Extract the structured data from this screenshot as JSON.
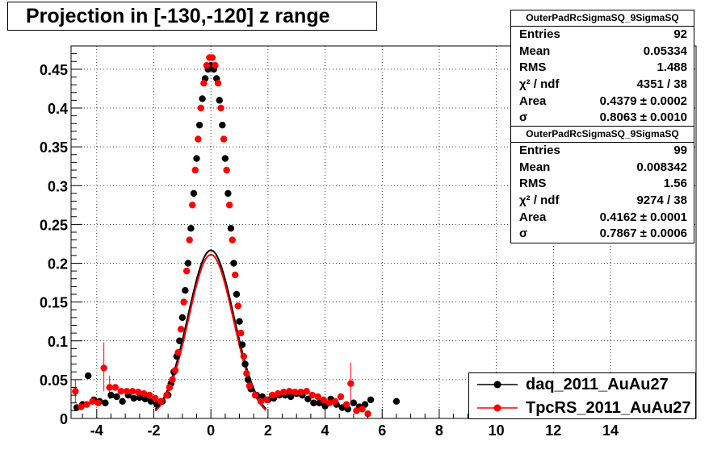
{
  "title": "Projection in [-130,-120] z range",
  "stats_boxes": [
    {
      "name": "OuterPadRcSigmaSQ_9SigmaSQ",
      "rows": [
        {
          "label": "Entries",
          "value": "92"
        },
        {
          "label": "Mean",
          "value": "0.05334"
        },
        {
          "label": "RMS",
          "value": "1.488"
        },
        {
          "label": "χ² / ndf",
          "value": "4351 / 38"
        },
        {
          "label": "Area",
          "value": "0.4379 ± 0.0002"
        },
        {
          "label": "σ",
          "value": "0.8063 ± 0.0010"
        }
      ]
    },
    {
      "name": "OuterPadRcSigmaSQ_9SigmaSQ",
      "rows": [
        {
          "label": "Entries",
          "value": "99"
        },
        {
          "label": "Mean",
          "value": "0.008342"
        },
        {
          "label": "RMS",
          "value": "1.56"
        },
        {
          "label": "χ² / ndf",
          "value": "9274 / 38"
        },
        {
          "label": "Area",
          "value": "0.4162 ± 0.0001"
        },
        {
          "label": "σ",
          "value": "0.7867 ± 0.0006"
        }
      ]
    }
  ],
  "legend": [
    {
      "label": "daq_2011_AuAu27",
      "color": "#000000"
    },
    {
      "label": "TpcRS_2011_AuAu27",
      "color": "#ff0000"
    }
  ],
  "chart_data": {
    "type": "scatter",
    "title": "Projection in [-130,-120] z range",
    "xlim": [
      -4.9,
      17
    ],
    "ylim": [
      0,
      0.48
    ],
    "grid": true,
    "legend_position": "bottom-right",
    "x_ticks": [
      -4,
      -2,
      0,
      2,
      4,
      6,
      8,
      10,
      12,
      14
    ],
    "y_ticks": [
      0,
      0.05,
      0.1,
      0.15,
      0.2,
      0.25,
      0.3,
      0.35,
      0.4,
      0.45
    ],
    "y_tick_labels": [
      "0",
      "0.05",
      "0.1",
      "0.15",
      "0.2",
      "0.25",
      "0.3",
      "0.35",
      "0.4",
      "0.45"
    ],
    "series": [
      {
        "name": "daq_2011_AuAu27",
        "color": "#000000",
        "points": [
          [
            -4.7,
            0.014
          ],
          [
            -4.5,
            0.018
          ],
          [
            -4.3,
            0.055
          ],
          [
            -4.1,
            0.024
          ],
          [
            -3.9,
            0.022
          ],
          [
            -3.7,
            0.02
          ],
          [
            -3.5,
            0.03
          ],
          [
            -3.3,
            0.028
          ],
          [
            -3.1,
            0.022
          ],
          [
            -2.9,
            0.03
          ],
          [
            -2.7,
            0.026
          ],
          [
            -2.5,
            0.027
          ],
          [
            -2.3,
            0.025
          ],
          [
            -2.1,
            0.022
          ],
          [
            -1.9,
            0.018
          ],
          [
            -1.7,
            0.022
          ],
          [
            -1.5,
            0.03
          ],
          [
            -1.4,
            0.045
          ],
          [
            -1.3,
            0.06
          ],
          [
            -1.2,
            0.08
          ],
          [
            -1.1,
            0.1
          ],
          [
            -1.0,
            0.13
          ],
          [
            -0.9,
            0.165
          ],
          [
            -0.8,
            0.2
          ],
          [
            -0.7,
            0.245
          ],
          [
            -0.6,
            0.29
          ],
          [
            -0.5,
            0.335
          ],
          [
            -0.4,
            0.378
          ],
          [
            -0.3,
            0.412
          ],
          [
            -0.2,
            0.438
          ],
          [
            -0.1,
            0.45
          ],
          [
            0.0,
            0.455
          ],
          [
            0.1,
            0.45
          ],
          [
            0.2,
            0.438
          ],
          [
            0.3,
            0.41
          ],
          [
            0.4,
            0.378
          ],
          [
            0.5,
            0.335
          ],
          [
            0.6,
            0.29
          ],
          [
            0.7,
            0.245
          ],
          [
            0.8,
            0.2
          ],
          [
            0.9,
            0.16
          ],
          [
            1.0,
            0.125
          ],
          [
            1.1,
            0.095
          ],
          [
            1.2,
            0.07
          ],
          [
            1.3,
            0.05
          ],
          [
            1.4,
            0.038
          ],
          [
            1.6,
            0.03
          ],
          [
            1.8,
            0.028
          ],
          [
            2.0,
            0.024
          ],
          [
            2.2,
            0.026
          ],
          [
            2.4,
            0.03
          ],
          [
            2.6,
            0.03
          ],
          [
            2.8,
            0.028
          ],
          [
            3.0,
            0.032
          ],
          [
            3.2,
            0.03
          ],
          [
            3.4,
            0.025
          ],
          [
            3.6,
            0.02
          ],
          [
            3.8,
            0.02
          ],
          [
            4.0,
            0.016
          ],
          [
            4.2,
            0.025
          ],
          [
            4.4,
            0.018
          ],
          [
            4.6,
            0.014
          ],
          [
            4.8,
            0.012
          ],
          [
            5.0,
            0.02
          ],
          [
            5.2,
            0.015
          ],
          [
            5.4,
            0.018
          ],
          [
            5.6,
            0.024
          ],
          [
            6.5,
            0.022
          ]
        ]
      },
      {
        "name": "TpcRS_2011_AuAu27",
        "color": "#ff0000",
        "points": [
          [
            -4.75,
            0.035
          ],
          [
            -4.55,
            0.015
          ],
          [
            -4.35,
            0.018
          ],
          [
            -4.15,
            0.022
          ],
          [
            -3.95,
            0.02
          ],
          [
            -3.75,
            0.065
          ],
          [
            -3.55,
            0.04
          ],
          [
            -3.35,
            0.04
          ],
          [
            -3.15,
            0.035
          ],
          [
            -2.95,
            0.035
          ],
          [
            -2.75,
            0.035
          ],
          [
            -2.55,
            0.034
          ],
          [
            -2.35,
            0.032
          ],
          [
            -2.15,
            0.03
          ],
          [
            -1.95,
            0.026
          ],
          [
            -1.75,
            0.022
          ],
          [
            -1.55,
            0.03
          ],
          [
            -1.45,
            0.04
          ],
          [
            -1.35,
            0.05
          ],
          [
            -1.25,
            0.062
          ],
          [
            -1.15,
            0.085
          ],
          [
            -1.05,
            0.115
          ],
          [
            -0.95,
            0.15
          ],
          [
            -0.85,
            0.19
          ],
          [
            -0.75,
            0.23
          ],
          [
            -0.65,
            0.275
          ],
          [
            -0.55,
            0.32
          ],
          [
            -0.45,
            0.36
          ],
          [
            -0.35,
            0.4
          ],
          [
            -0.25,
            0.432
          ],
          [
            -0.15,
            0.455
          ],
          [
            -0.05,
            0.465
          ],
          [
            0.05,
            0.465
          ],
          [
            0.15,
            0.455
          ],
          [
            0.25,
            0.432
          ],
          [
            0.35,
            0.4
          ],
          [
            0.45,
            0.36
          ],
          [
            0.55,
            0.32
          ],
          [
            0.65,
            0.275
          ],
          [
            0.75,
            0.23
          ],
          [
            0.85,
            0.185
          ],
          [
            0.95,
            0.145
          ],
          [
            1.05,
            0.11
          ],
          [
            1.15,
            0.08
          ],
          [
            1.25,
            0.058
          ],
          [
            1.35,
            0.042
          ],
          [
            1.55,
            0.03
          ],
          [
            1.75,
            0.022
          ],
          [
            1.95,
            0.024
          ],
          [
            2.15,
            0.03
          ],
          [
            2.35,
            0.032
          ],
          [
            2.55,
            0.034
          ],
          [
            2.75,
            0.035
          ],
          [
            2.95,
            0.034
          ],
          [
            3.15,
            0.034
          ],
          [
            3.35,
            0.035
          ],
          [
            3.55,
            0.03
          ],
          [
            3.75,
            0.028
          ],
          [
            3.95,
            0.024
          ],
          [
            4.15,
            0.02
          ],
          [
            4.35,
            0.022
          ],
          [
            4.55,
            0.028
          ],
          [
            4.75,
            0.018
          ],
          [
            4.9,
            0.045
          ],
          [
            5.1,
            0.01
          ],
          [
            5.3,
            0.012
          ],
          [
            5.5,
            0.006
          ]
        ],
        "error_bars": [
          {
            "x": -3.75,
            "low": 0.035,
            "high": 0.098
          },
          {
            "x": -4.75,
            "low": 0.02,
            "high": 0.05
          },
          {
            "x": 4.9,
            "low": 0.02,
            "high": 0.072
          },
          {
            "x": -3.55,
            "low": 0.025,
            "high": 0.055
          }
        ]
      }
    ],
    "fits": [
      {
        "series": "daq_2011_AuAu27",
        "color": "#000000",
        "area": 0.4379,
        "sigma": 0.8063,
        "mean": 0.0
      },
      {
        "series": "TpcRS_2011_AuAu27",
        "color": "#ff0000",
        "area": 0.4162,
        "sigma": 0.7867,
        "mean": 0.0
      }
    ]
  }
}
